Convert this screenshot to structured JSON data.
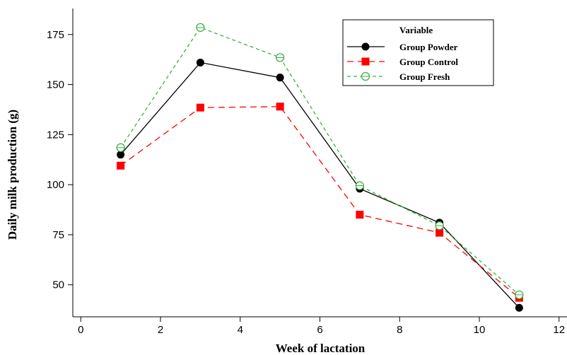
{
  "chart_data": {
    "type": "line",
    "title": "",
    "xlabel": "Week of lactation",
    "ylabel": "Daily milk production (g)",
    "xlim": [
      -0.2,
      12.2
    ],
    "ylim": [
      34,
      188
    ],
    "x_ticks": [
      0,
      2,
      4,
      6,
      8,
      10,
      12
    ],
    "y_ticks": [
      50,
      75,
      100,
      125,
      150,
      175
    ],
    "grid": false,
    "legend": {
      "title": "Variable",
      "position": "top-right"
    },
    "x": [
      1,
      3,
      5,
      7,
      9,
      11
    ],
    "series": [
      {
        "name": "Group Powder",
        "color": "#000000",
        "style": "solid",
        "marker": "filled-circle",
        "values": [
          115,
          161,
          153.5,
          98,
          81,
          38.5
        ]
      },
      {
        "name": "Group Control",
        "color": "#ff0000",
        "style": "dashed",
        "marker": "filled-square",
        "values": [
          109.5,
          138.5,
          139,
          85,
          76,
          43.5
        ]
      },
      {
        "name": "Group Fresh",
        "color": "#3cb043",
        "style": "dashed",
        "marker": "open-circle",
        "values": [
          118.5,
          178.5,
          163.5,
          99.5,
          79.5,
          45
        ]
      }
    ]
  }
}
